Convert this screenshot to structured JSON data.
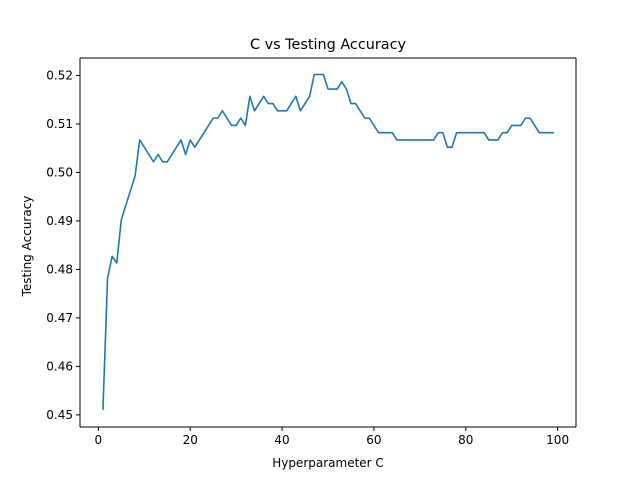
{
  "chart_data": {
    "type": "line",
    "title": "C vs Testing Accuracy",
    "xlabel": "Hyperparameter C",
    "ylabel": "Testing Accuracy",
    "xlim": [
      -4,
      104
    ],
    "ylim": [
      0.4475,
      0.5236
    ],
    "xticks": [
      0,
      20,
      40,
      60,
      80,
      100
    ],
    "xtick_labels": [
      "0",
      "20",
      "40",
      "60",
      "80",
      "100"
    ],
    "yticks": [
      0.45,
      0.46,
      0.47,
      0.48,
      0.49,
      0.5,
      0.51,
      0.52
    ],
    "ytick_labels": [
      "0.45",
      "0.46",
      "0.47",
      "0.48",
      "0.49",
      "0.50",
      "0.51",
      "0.52"
    ],
    "grid": false,
    "series": [
      {
        "color": "#1f77b4",
        "x": [
          1,
          2,
          3,
          4,
          5,
          6,
          7,
          8,
          9,
          10,
          11,
          12,
          13,
          14,
          15,
          16,
          17,
          18,
          19,
          20,
          21,
          22,
          23,
          24,
          25,
          26,
          27,
          28,
          29,
          30,
          31,
          32,
          33,
          34,
          35,
          36,
          37,
          38,
          39,
          40,
          41,
          42,
          43,
          44,
          45,
          46,
          47,
          48,
          49,
          50,
          51,
          52,
          53,
          54,
          55,
          56,
          57,
          58,
          59,
          60,
          61,
          62,
          63,
          64,
          65,
          66,
          67,
          68,
          69,
          70,
          71,
          72,
          73,
          74,
          75,
          76,
          77,
          78,
          79,
          80,
          81,
          82,
          83,
          84,
          85,
          86,
          87,
          88,
          89,
          90,
          91,
          92,
          93,
          94,
          95,
          96,
          97,
          98,
          99
        ],
        "y": [
          0.4512,
          0.4782,
          0.4827,
          0.4813,
          0.4903,
          0.4933,
          0.4963,
          0.4993,
          0.5067,
          0.5052,
          0.5037,
          0.5022,
          0.5037,
          0.5022,
          0.5022,
          0.5037,
          0.5052,
          0.5067,
          0.5037,
          0.5067,
          0.5052,
          0.5067,
          0.5082,
          0.5097,
          0.5112,
          0.5112,
          0.5127,
          0.5112,
          0.5097,
          0.5097,
          0.5112,
          0.5097,
          0.5157,
          0.5127,
          0.5142,
          0.5157,
          0.5142,
          0.5142,
          0.5127,
          0.5127,
          0.5127,
          0.5142,
          0.5157,
          0.5127,
          0.5142,
          0.5157,
          0.5202,
          0.5202,
          0.5202,
          0.5172,
          0.5172,
          0.5172,
          0.5187,
          0.5172,
          0.5142,
          0.5142,
          0.5127,
          0.5112,
          0.5112,
          0.5097,
          0.5082,
          0.5082,
          0.5082,
          0.5082,
          0.5067,
          0.5067,
          0.5067,
          0.5067,
          0.5067,
          0.5067,
          0.5067,
          0.5067,
          0.5067,
          0.5082,
          0.5082,
          0.5052,
          0.5052,
          0.5082,
          0.5082,
          0.5082,
          0.5082,
          0.5082,
          0.5082,
          0.5082,
          0.5067,
          0.5067,
          0.5067,
          0.5082,
          0.5082,
          0.5097,
          0.5097,
          0.5097,
          0.5112,
          0.5112,
          0.5097,
          0.5082,
          0.5082,
          0.5082,
          0.5082
        ]
      }
    ]
  }
}
